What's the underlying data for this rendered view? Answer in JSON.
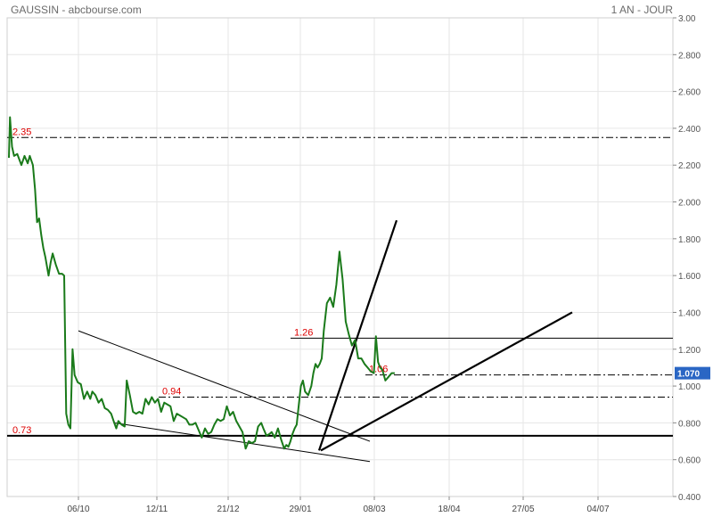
{
  "header": {
    "title": "GAUSSIN - abcbourse.com",
    "period": "1 AN - JOUR"
  },
  "chart_data": {
    "type": "line",
    "title": "GAUSSIN - abcbourse.com",
    "ylim": [
      0.4,
      3.0
    ],
    "y_ticks": [
      "0.400",
      "0.600",
      "0.800",
      "1.000",
      "1.200",
      "1.400",
      "1.600",
      "1.800",
      "2.000",
      "2.200",
      "2.400",
      "2.600",
      "2.800",
      "3.00"
    ],
    "x_ticks": [
      "06/10",
      "12/11",
      "21/12",
      "29/01",
      "08/03",
      "18/04",
      "27/05",
      "04/07"
    ],
    "last_value": "1.070",
    "colors": {
      "line": "#1a7a1a",
      "last_badge": "#2a66c4",
      "level_text": "#dd0000",
      "grid": "#e6e6e6"
    },
    "series": [
      {
        "x": [
          0,
          1,
          3,
          5,
          8,
          10,
          12,
          15,
          18,
          20,
          23,
          25,
          27,
          29,
          31,
          33,
          35,
          38,
          40,
          42,
          45,
          48,
          51,
          53,
          55,
          57,
          59,
          61,
          63,
          66,
          69,
          72,
          75,
          78,
          80,
          83,
          86,
          89,
          92,
          95,
          98,
          101,
          103,
          105,
          108,
          111,
          113,
          116,
          119,
          122,
          125,
          128,
          131,
          134,
          137,
          140,
          143,
          146,
          149,
          152,
          155,
          158,
          161,
          164,
          167,
          170,
          173,
          176,
          179,
          182,
          185,
          188,
          191,
          194,
          197,
          200,
          203,
          206,
          209,
          212,
          215,
          218,
          221,
          224,
          227,
          230,
          233,
          236,
          239,
          242,
          244,
          247,
          250,
          252,
          255,
          258,
          261,
          264,
          266,
          268,
          270,
          272,
          274,
          276,
          278,
          280,
          282,
          284,
          287,
          290,
          292,
          294,
          296,
          298,
          300,
          302,
          305,
          308,
          311,
          314,
          317,
          320,
          323,
          326,
          329,
          332,
          335,
          338,
          341,
          344,
          347,
          350,
          352,
          354,
          356,
          358,
          361,
          364,
          367,
          370
        ],
        "y": [
          2.24,
          2.46,
          2.3,
          2.25,
          2.26,
          2.23,
          2.2,
          2.25,
          2.21,
          2.25,
          2.2,
          2.07,
          1.89,
          1.91,
          1.82,
          1.75,
          1.7,
          1.6,
          1.67,
          1.72,
          1.66,
          1.61,
          1.61,
          1.6,
          0.85,
          0.79,
          0.77,
          1.2,
          1.06,
          1.02,
          1.01,
          0.93,
          0.97,
          0.93,
          0.97,
          0.95,
          0.91,
          0.93,
          0.88,
          0.87,
          0.85,
          0.8,
          0.77,
          0.81,
          0.79,
          0.78,
          1.03,
          0.95,
          0.86,
          0.85,
          0.86,
          0.85,
          0.93,
          0.9,
          0.94,
          0.91,
          0.93,
          0.86,
          0.91,
          0.9,
          0.89,
          0.81,
          0.85,
          0.84,
          0.83,
          0.82,
          0.79,
          0.79,
          0.8,
          0.76,
          0.72,
          0.77,
          0.74,
          0.75,
          0.79,
          0.82,
          0.81,
          0.82,
          0.89,
          0.84,
          0.86,
          0.81,
          0.78,
          0.75,
          0.66,
          0.7,
          0.69,
          0.7,
          0.78,
          0.8,
          0.77,
          0.73,
          0.74,
          0.75,
          0.72,
          0.77,
          0.71,
          0.66,
          0.68,
          0.67,
          0.7,
          0.74,
          0.77,
          0.79,
          0.9,
          1.0,
          1.03,
          0.97,
          0.95,
          1.0,
          1.07,
          1.12,
          1.1,
          1.12,
          1.15,
          1.3,
          1.45,
          1.48,
          1.43,
          1.55,
          1.73,
          1.58,
          1.35,
          1.28,
          1.22,
          1.25,
          1.15,
          1.15,
          1.12,
          1.1,
          1.08,
          1.07,
          1.27,
          1.13,
          1.1,
          1.09,
          1.03,
          1.05,
          1.07,
          1.07
        ],
        "x_note": "trading-day index over one year"
      }
    ],
    "levels": [
      {
        "label": "2.35",
        "value": 2.35,
        "style": "dashdot"
      },
      {
        "label": "1.26",
        "value": 1.26,
        "style": "solid"
      },
      {
        "label": "1.06",
        "value": 1.06,
        "style": "dashdot"
      },
      {
        "label": "0.94",
        "value": 0.94,
        "style": "dashdot"
      },
      {
        "label": "0.73",
        "value": 0.73,
        "style": "solid-bold"
      }
    ],
    "trendlines": [
      {
        "from": [
          88,
          1.3
        ],
        "to": [
          415,
          0.7
        ],
        "weight": "thin"
      },
      {
        "from": [
          128,
          0.8
        ],
        "to": [
          415,
          0.59
        ],
        "weight": "thin"
      },
      {
        "from": [
          358,
          0.65
        ],
        "to": [
          445,
          1.9
        ],
        "weight": "bold"
      },
      {
        "from": [
          360,
          0.65
        ],
        "to": [
          642,
          1.4
        ],
        "weight": "bold"
      }
    ],
    "grid": true,
    "legend": "none"
  }
}
